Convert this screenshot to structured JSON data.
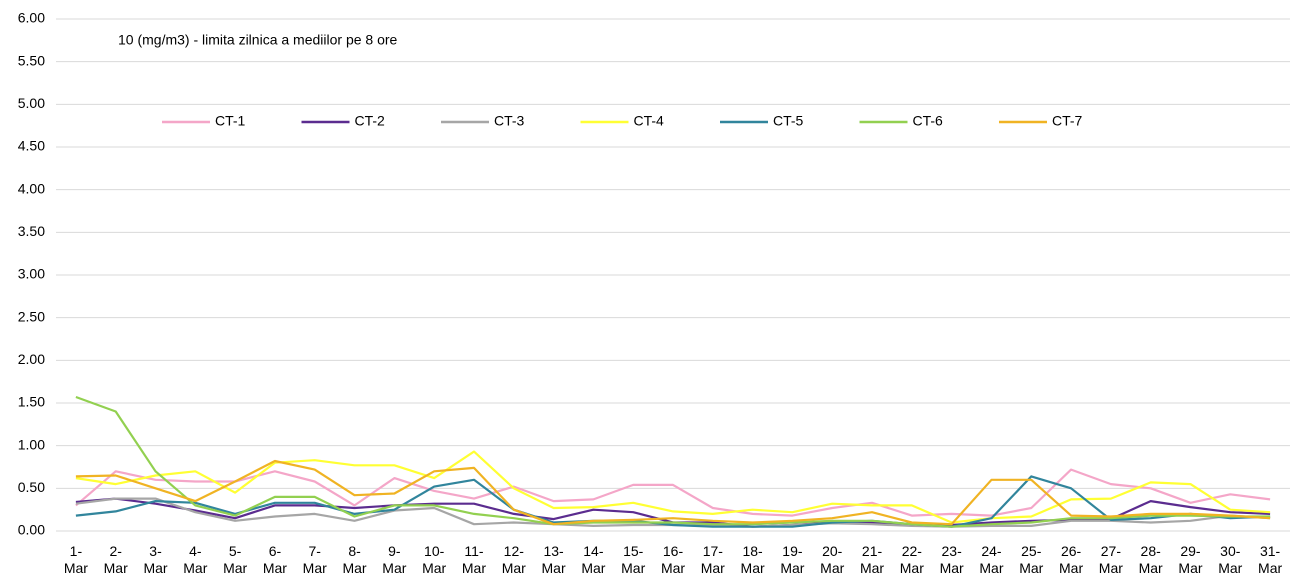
{
  "chart_data": {
    "type": "line",
    "annotation": "10 (mg/m3)  - limita zilnica a mediilor pe 8 ore",
    "categories": [
      "1-Mar",
      "2-Mar",
      "3-Mar",
      "4-Mar",
      "5-Mar",
      "6-Mar",
      "7-Mar",
      "8-Mar",
      "9-Mar",
      "10-Mar",
      "11-Mar",
      "12-Mar",
      "13-Mar",
      "14-Mar",
      "15-Mar",
      "16-Mar",
      "17-Mar",
      "18-Mar",
      "19-Mar",
      "20-Mar",
      "21-Mar",
      "22-Mar",
      "23-Mar",
      "24-Mar",
      "25-Mar",
      "26-Mar",
      "27-Mar",
      "28-Mar",
      "29-Mar",
      "30-Mar",
      "31-Mar"
    ],
    "series": [
      {
        "name": "CT-1",
        "color": "#f4a6c8",
        "values": [
          0.3,
          0.7,
          0.6,
          0.58,
          0.58,
          0.7,
          0.58,
          0.3,
          0.62,
          0.47,
          0.38,
          0.52,
          0.35,
          0.37,
          0.54,
          0.54,
          0.27,
          0.2,
          0.18,
          0.27,
          0.33,
          0.18,
          0.2,
          0.18,
          0.27,
          0.72,
          0.55,
          0.5,
          0.33,
          0.43,
          0.37
        ]
      },
      {
        "name": "CT-2",
        "color": "#5b2c8f",
        "values": [
          0.34,
          0.38,
          0.32,
          0.24,
          0.15,
          0.3,
          0.3,
          0.27,
          0.3,
          0.32,
          0.32,
          0.2,
          0.14,
          0.25,
          0.22,
          0.1,
          0.1,
          0.05,
          0.07,
          0.1,
          0.1,
          0.08,
          0.07,
          0.1,
          0.12,
          0.13,
          0.14,
          0.35,
          0.28,
          0.22,
          0.2
        ]
      },
      {
        "name": "CT-3",
        "color": "#a6a6a6",
        "values": [
          0.32,
          0.38,
          0.38,
          0.22,
          0.12,
          0.17,
          0.2,
          0.12,
          0.24,
          0.27,
          0.08,
          0.1,
          0.08,
          0.06,
          0.07,
          0.07,
          0.06,
          0.05,
          0.07,
          0.09,
          0.08,
          0.06,
          0.05,
          0.06,
          0.06,
          0.12,
          0.12,
          0.1,
          0.12,
          0.18,
          0.15
        ]
      },
      {
        "name": "CT-4",
        "color": "#ffff33",
        "values": [
          0.62,
          0.55,
          0.65,
          0.7,
          0.45,
          0.8,
          0.83,
          0.77,
          0.77,
          0.62,
          0.93,
          0.5,
          0.27,
          0.28,
          0.33,
          0.23,
          0.2,
          0.25,
          0.22,
          0.32,
          0.3,
          0.3,
          0.1,
          0.15,
          0.17,
          0.37,
          0.38,
          0.57,
          0.55,
          0.25,
          0.22
        ]
      },
      {
        "name": "CT-5",
        "color": "#31859c",
        "values": [
          0.18,
          0.23,
          0.35,
          0.33,
          0.2,
          0.33,
          0.33,
          0.2,
          0.25,
          0.52,
          0.6,
          0.25,
          0.1,
          0.12,
          0.12,
          0.07,
          0.05,
          0.05,
          0.05,
          0.1,
          0.12,
          0.08,
          0.05,
          0.15,
          0.64,
          0.5,
          0.13,
          0.15,
          0.2,
          0.15,
          0.17
        ]
      },
      {
        "name": "CT-6",
        "color": "#92d050",
        "values": [
          1.57,
          1.4,
          0.7,
          0.3,
          0.18,
          0.4,
          0.4,
          0.17,
          0.3,
          0.3,
          0.2,
          0.15,
          0.08,
          0.1,
          0.1,
          0.1,
          0.08,
          0.08,
          0.1,
          0.12,
          0.12,
          0.08,
          0.05,
          0.08,
          0.1,
          0.15,
          0.15,
          0.18,
          0.18,
          0.17,
          0.17
        ]
      },
      {
        "name": "CT-7",
        "color": "#f0b323",
        "values": [
          0.64,
          0.65,
          0.5,
          0.35,
          0.58,
          0.82,
          0.72,
          0.42,
          0.44,
          0.7,
          0.74,
          0.25,
          0.08,
          0.12,
          0.13,
          0.15,
          0.12,
          0.1,
          0.12,
          0.15,
          0.22,
          0.1,
          0.08,
          0.6,
          0.6,
          0.18,
          0.17,
          0.2,
          0.2,
          0.18,
          0.15
        ]
      }
    ],
    "ylim": [
      0,
      6
    ],
    "yticks": [
      {
        "value": 0,
        "label": "0.00"
      },
      {
        "value": 0.5,
        "label": "0.50"
      },
      {
        "value": 1,
        "label": "1.00"
      },
      {
        "value": 1.5,
        "label": "1.50"
      },
      {
        "value": 2,
        "label": "2.00"
      },
      {
        "value": 2.5,
        "label": "2.50"
      },
      {
        "value": 3,
        "label": "3.00"
      },
      {
        "value": 3.5,
        "label": "3.50"
      },
      {
        "value": 4,
        "label": "4.00"
      },
      {
        "value": 4.5,
        "label": "4.50"
      },
      {
        "value": 5,
        "label": "5.00"
      },
      {
        "value": 5.5,
        "label": "5.50"
      },
      {
        "value": 6,
        "label": "6.00"
      }
    ],
    "grid": true
  }
}
